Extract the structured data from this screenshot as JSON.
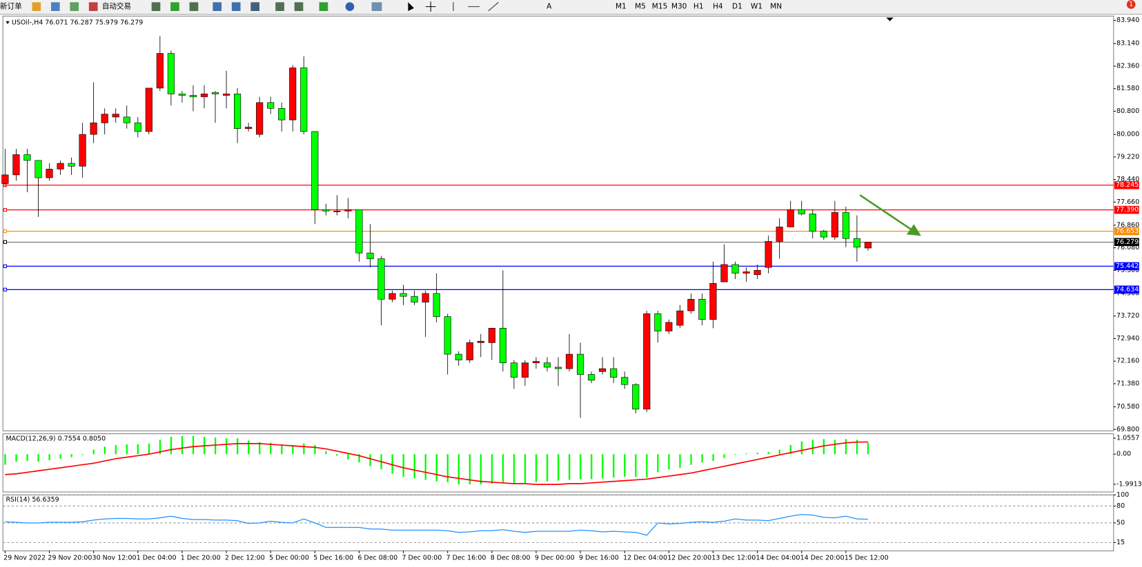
{
  "toolbar": {
    "new_order": "新订单",
    "auto_trading": "自动交易",
    "timeframes": [
      "M1",
      "M5",
      "M15",
      "M30",
      "H1",
      "H4",
      "D1",
      "W1",
      "MN"
    ],
    "badge": "1"
  },
  "chart_data": [
    {
      "type": "candlestick",
      "title": "USOil-,H4 76.071 76.287 75.979 76.279",
      "categories": [
        "29 Nov 2022",
        null,
        null,
        null,
        "29 Nov 20:00",
        null,
        null,
        null,
        "30 Nov 12:00",
        null,
        null,
        null,
        "1 Dec 04:00",
        null,
        null,
        null,
        "1 Dec 20:00",
        null,
        null,
        null,
        "2 Dec 12:00",
        null,
        null,
        null,
        "5 Dec 00:00",
        null,
        null,
        null,
        "5 Dec 16:00",
        null,
        null,
        null,
        "6 Dec 08:00",
        null,
        null,
        null,
        "7 Dec 00:00",
        null,
        null,
        null,
        "7 Dec 16:00",
        null,
        null,
        null,
        "8 Dec 08:00",
        null,
        null,
        null,
        "9 Dec 00:00",
        null,
        null,
        null,
        "9 Dec 16:00",
        null,
        null,
        null,
        "12 Dec 04:00",
        null,
        null,
        null,
        "12 Dec 20:00",
        null,
        null,
        null,
        "13 Dec 12:00",
        null,
        null,
        null,
        "14 Dec 04:00",
        null,
        null,
        null,
        "14 Dec 20:00",
        null,
        null,
        null,
        "15 Dec 12:00",
        null,
        null
      ],
      "open": [
        78.3,
        78.6,
        79.3,
        79.1,
        78.5,
        78.8,
        79.0,
        78.9,
        80.0,
        80.4,
        80.6,
        80.6,
        80.4,
        80.1,
        81.6,
        82.8,
        81.4,
        81.35,
        81.3,
        81.45,
        81.35,
        81.4,
        80.2,
        80.0,
        81.1,
        80.9,
        80.5,
        82.3,
        80.1,
        77.4,
        77.35,
        77.35,
        77.4,
        75.9,
        75.7,
        74.3,
        74.5,
        74.4,
        74.2,
        74.5,
        73.7,
        72.4,
        72.2,
        72.8,
        72.8,
        73.3,
        72.1,
        71.6,
        72.1,
        72.1,
        71.95,
        71.9,
        72.4,
        71.7,
        71.8,
        71.9,
        71.6,
        71.35,
        70.5,
        73.8,
        73.2,
        73.4,
        73.9,
        74.3,
        73.6,
        74.9,
        75.5,
        75.2,
        75.15,
        75.4,
        76.3,
        76.8,
        77.4,
        77.25,
        76.65,
        76.45,
        77.3,
        76.4,
        76.071
      ],
      "high": [
        79.5,
        79.5,
        79.5,
        79.1,
        79.0,
        79.1,
        79.2,
        80.4,
        81.8,
        80.9,
        80.9,
        81.0,
        80.6,
        81.6,
        83.4,
        82.9,
        81.5,
        81.7,
        81.7,
        81.5,
        82.2,
        81.6,
        80.4,
        81.3,
        81.3,
        81.1,
        82.4,
        82.7,
        80.1,
        77.6,
        77.9,
        77.8,
        77.4,
        76.9,
        75.8,
        74.6,
        74.8,
        74.6,
        74.6,
        75.2,
        73.8,
        72.5,
        72.9,
        73.1,
        73.3,
        75.3,
        72.2,
        72.2,
        72.3,
        72.3,
        72.3,
        73.1,
        72.8,
        71.8,
        72.3,
        72.3,
        71.8,
        71.4,
        73.9,
        73.9,
        73.6,
        74.1,
        74.5,
        74.5,
        75.6,
        76.2,
        75.6,
        75.4,
        75.5,
        76.5,
        77.1,
        77.7,
        77.7,
        77.4,
        76.7,
        77.7,
        77.5,
        77.2,
        76.287
      ],
      "low": [
        78.2,
        78.4,
        78.0,
        77.15,
        78.4,
        78.6,
        78.6,
        78.5,
        79.7,
        80.0,
        80.4,
        80.2,
        79.9,
        80.0,
        81.5,
        81.0,
        81.1,
        80.8,
        80.9,
        80.4,
        80.9,
        79.7,
        80.1,
        79.9,
        80.7,
        80.1,
        80.1,
        80.0,
        76.9,
        77.2,
        77.2,
        77.1,
        75.6,
        75.4,
        73.4,
        74.2,
        74.1,
        74.1,
        73.0,
        73.5,
        71.7,
        72.0,
        72.1,
        72.3,
        72.2,
        71.8,
        71.2,
        71.3,
        71.9,
        71.8,
        71.3,
        71.8,
        70.2,
        71.4,
        71.7,
        71.4,
        71.2,
        70.35,
        70.4,
        72.8,
        73.1,
        73.3,
        73.8,
        73.4,
        73.3,
        74.9,
        75.0,
        74.9,
        75.0,
        75.2,
        75.7,
        76.8,
        77.2,
        76.4,
        76.35,
        76.35,
        76.1,
        75.6,
        75.979
      ],
      "close": [
        78.6,
        79.3,
        79.1,
        78.5,
        78.8,
        79.0,
        78.9,
        80.0,
        80.4,
        80.7,
        80.7,
        80.4,
        80.1,
        81.6,
        82.8,
        81.4,
        81.35,
        81.3,
        81.4,
        81.4,
        81.4,
        80.2,
        80.25,
        81.1,
        80.9,
        80.5,
        82.3,
        80.1,
        77.4,
        77.35,
        77.35,
        77.4,
        75.9,
        75.7,
        74.3,
        74.5,
        74.4,
        74.2,
        74.5,
        73.7,
        72.4,
        72.2,
        72.8,
        72.85,
        73.3,
        72.1,
        71.6,
        72.1,
        72.15,
        71.95,
        71.9,
        72.4,
        71.7,
        71.5,
        71.9,
        71.6,
        71.35,
        70.5,
        73.8,
        73.2,
        73.5,
        73.9,
        74.3,
        73.6,
        74.85,
        75.5,
        75.2,
        75.25,
        75.3,
        76.3,
        76.8,
        77.4,
        77.25,
        76.65,
        76.45,
        77.3,
        76.4,
        76.1,
        76.279
      ],
      "up_color": "#ff0000",
      "down_color": "#00ff00",
      "ylim": [
        69.75,
        84.09
      ],
      "yticks": [
        {
          "value": 83.94,
          "label": "83.940"
        },
        {
          "value": 83.14,
          "label": "83.140"
        },
        {
          "value": 82.36,
          "label": "82.360"
        },
        {
          "value": 81.58,
          "label": "81.580"
        },
        {
          "value": 80.8,
          "label": "80.800"
        },
        {
          "value": 80.0,
          "label": "80.000"
        },
        {
          "value": 79.22,
          "label": "79.220"
        },
        {
          "value": 78.44,
          "label": "78.440"
        },
        {
          "value": 77.66,
          "label": "77.660"
        },
        {
          "value": 76.86,
          "label": "76.860"
        },
        {
          "value": 76.08,
          "label": "76.080"
        },
        {
          "value": 75.3,
          "label": "75.300"
        },
        {
          "value": 74.5,
          "label": "74.500"
        },
        {
          "value": 73.72,
          "label": "73.720"
        },
        {
          "value": 72.94,
          "label": "72.940"
        },
        {
          "value": 72.16,
          "label": "72.160"
        },
        {
          "value": 71.38,
          "label": "71.380"
        },
        {
          "value": 70.58,
          "label": "70.580"
        },
        {
          "value": 69.8,
          "label": "69.800"
        }
      ],
      "levels": [
        {
          "value": 78.245,
          "label": "78.245",
          "color": "#ff0000"
        },
        {
          "value": 77.39,
          "label": "77.390",
          "color": "#ff0000"
        },
        {
          "value": 76.653,
          "label": "76.653",
          "color": "#ff8c00"
        },
        {
          "value": 76.279,
          "label": "76.279",
          "color": "#000000"
        },
        {
          "value": 75.442,
          "label": "75.442",
          "color": "#0000ff"
        },
        {
          "value": 74.634,
          "label": "74.634",
          "color": "#0000ff"
        }
      ],
      "grid": false
    },
    {
      "type": "macd",
      "title": "MACD(12,26,9) 0.7554 0.8050",
      "color": "#00ff00",
      "values": [
        -0.7,
        -0.5,
        -0.45,
        -0.5,
        -0.4,
        -0.3,
        -0.2,
        -0.05,
        0.3,
        0.5,
        0.6,
        0.65,
        0.65,
        0.7,
        0.95,
        1.15,
        1.2,
        1.2,
        1.15,
        1.1,
        1.05,
        1.05,
        0.9,
        0.8,
        0.75,
        0.65,
        0.6,
        0.7,
        0.6,
        0.2,
        -0.1,
        -0.35,
        -0.55,
        -0.8,
        -1.0,
        -1.3,
        -1.5,
        -1.6,
        -1.7,
        -1.8,
        -1.85,
        -2.0,
        -2.0,
        -2.0,
        -1.95,
        -1.9,
        -1.9,
        -1.9,
        -1.85,
        -1.8,
        -1.75,
        -1.7,
        -1.65,
        -1.65,
        -1.6,
        -1.55,
        -1.5,
        -1.5,
        -1.55,
        -1.2,
        -1.0,
        -0.9,
        -0.7,
        -0.55,
        -0.45,
        -0.25,
        -0.05,
        0.05,
        0.1,
        0.15,
        0.3,
        0.6,
        0.85,
        0.95,
        1.0,
        0.95,
        1.0,
        0.95,
        0.7554
      ],
      "signal": {
        "color": "#ff0000",
        "values": [
          -1.35,
          -1.3,
          -1.2,
          -1.1,
          -1.0,
          -0.9,
          -0.8,
          -0.7,
          -0.6,
          -0.45,
          -0.3,
          -0.2,
          -0.1,
          0.0,
          0.15,
          0.3,
          0.4,
          0.5,
          0.55,
          0.6,
          0.65,
          0.7,
          0.7,
          0.7,
          0.65,
          0.6,
          0.55,
          0.5,
          0.45,
          0.35,
          0.2,
          0.05,
          -0.1,
          -0.3,
          -0.5,
          -0.7,
          -0.9,
          -1.05,
          -1.2,
          -1.35,
          -1.5,
          -1.6,
          -1.7,
          -1.8,
          -1.85,
          -1.9,
          -1.95,
          -1.95,
          -2.0,
          -2.0,
          -2.0,
          -1.95,
          -1.95,
          -1.9,
          -1.85,
          -1.8,
          -1.75,
          -1.7,
          -1.65,
          -1.55,
          -1.45,
          -1.35,
          -1.25,
          -1.1,
          -0.95,
          -0.8,
          -0.65,
          -0.5,
          -0.35,
          -0.2,
          -0.05,
          0.1,
          0.25,
          0.4,
          0.55,
          0.65,
          0.75,
          0.8,
          0.805
        ]
      },
      "ylim": [
        -2.5,
        1.35
      ],
      "yticks": [
        1.0557,
        {
          "value": 0,
          "label": "0.00"
        },
        -1.9913
      ]
    },
    {
      "type": "line",
      "title": "RSI(14) 56.6359",
      "color": "#1e90ff",
      "values": [
        52,
        51,
        50,
        50,
        51,
        51,
        51,
        52,
        55,
        57,
        58,
        58,
        57,
        57,
        59,
        62,
        58,
        56,
        56,
        55,
        55,
        54,
        49,
        50,
        53,
        51,
        50,
        57,
        50,
        42,
        42,
        42,
        42,
        39,
        39,
        37,
        37,
        37,
        37,
        37,
        36,
        33,
        34,
        36,
        36,
        38,
        35,
        33,
        35,
        35,
        35,
        35,
        37,
        36,
        34,
        35,
        34,
        33,
        28,
        50,
        48,
        49,
        51,
        52,
        51,
        53,
        57,
        55,
        55,
        54,
        58,
        62,
        65,
        64,
        60,
        59,
        62,
        57,
        56.6359
      ],
      "ylim": [
        0,
        100
      ],
      "yticks": [
        100,
        80,
        50,
        15
      ],
      "grid": "dashed"
    }
  ]
}
